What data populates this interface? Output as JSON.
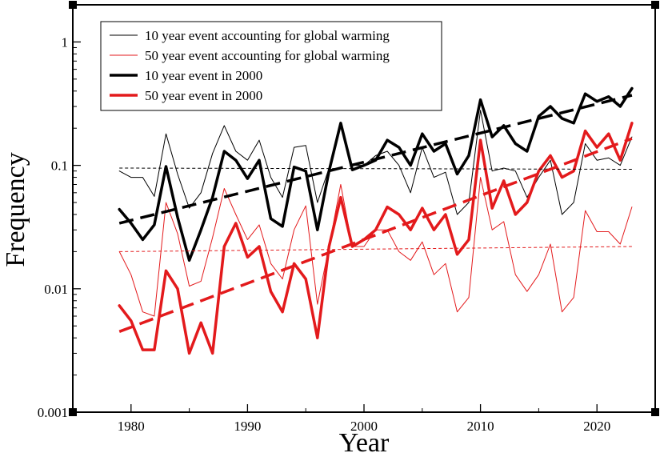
{
  "chart_data": {
    "type": "line",
    "title": "",
    "xlabel": "Year",
    "ylabel": "Frequency",
    "y_scale": "log",
    "xlim": [
      1975,
      2025
    ],
    "ylim": [
      0.001,
      2
    ],
    "x_ticks": [
      1980,
      1990,
      2000,
      2010,
      2020
    ],
    "y_ticks": [
      0.001,
      0.01,
      0.1,
      1
    ],
    "y_tick_labels": [
      "0.001",
      "0.01",
      "0.1",
      "1"
    ],
    "legend_position": "top-left",
    "x": [
      1979,
      1980,
      1981,
      1982,
      1983,
      1984,
      1985,
      1986,
      1987,
      1988,
      1989,
      1990,
      1991,
      1992,
      1993,
      1994,
      1995,
      1996,
      1997,
      1998,
      1999,
      2000,
      2001,
      2002,
      2003,
      2004,
      2005,
      2006,
      2007,
      2008,
      2009,
      2010,
      2011,
      2012,
      2013,
      2014,
      2015,
      2016,
      2017,
      2018,
      2019,
      2020,
      2021,
      2022,
      2023
    ],
    "series": [
      {
        "name": "10 year event accounting for global warming",
        "color": "#000000",
        "width": 1,
        "dash": "solid",
        "legend": true,
        "values": [
          0.09,
          0.08,
          0.08,
          0.056,
          0.18,
          0.085,
          0.045,
          0.06,
          0.125,
          0.21,
          0.13,
          0.11,
          0.16,
          0.08,
          0.055,
          0.14,
          0.145,
          0.05,
          0.095,
          0.21,
          0.1,
          0.1,
          0.12,
          0.13,
          0.1,
          0.06,
          0.14,
          0.08,
          0.088,
          0.04,
          0.05,
          0.28,
          0.09,
          0.095,
          0.09,
          0.055,
          0.08,
          0.11,
          0.04,
          0.05,
          0.15,
          0.11,
          0.115,
          0.1,
          0.17
        ]
      },
      {
        "name": "50 year event accounting for global warming",
        "color": "#e31a1c",
        "width": 1,
        "dash": "solid",
        "legend": true,
        "values": [
          0.02,
          0.013,
          0.0065,
          0.006,
          0.05,
          0.028,
          0.0105,
          0.0115,
          0.026,
          0.065,
          0.04,
          0.025,
          0.033,
          0.016,
          0.012,
          0.03,
          0.047,
          0.0075,
          0.022,
          0.07,
          0.022,
          0.022,
          0.03,
          0.03,
          0.02,
          0.017,
          0.024,
          0.013,
          0.016,
          0.0065,
          0.0085,
          0.08,
          0.03,
          0.035,
          0.013,
          0.0095,
          0.013,
          0.023,
          0.0065,
          0.0085,
          0.043,
          0.029,
          0.029,
          0.023,
          0.046
        ]
      },
      {
        "name": "10 year event in 2000",
        "color": "#000000",
        "width": 3.5,
        "dash": "solid",
        "legend": true,
        "values": [
          0.044,
          0.034,
          0.025,
          0.033,
          0.098,
          0.038,
          0.017,
          0.03,
          0.055,
          0.13,
          0.11,
          0.078,
          0.11,
          0.037,
          0.032,
          0.097,
          0.09,
          0.03,
          0.09,
          0.22,
          0.092,
          0.1,
          0.11,
          0.16,
          0.14,
          0.1,
          0.18,
          0.13,
          0.15,
          0.085,
          0.12,
          0.34,
          0.17,
          0.21,
          0.15,
          0.13,
          0.25,
          0.3,
          0.24,
          0.22,
          0.38,
          0.33,
          0.36,
          0.3,
          0.42
        ]
      },
      {
        "name": "50 year event in 2000",
        "color": "#e31a1c",
        "width": 3.5,
        "dash": "solid",
        "legend": true,
        "values": [
          0.0073,
          0.0055,
          0.0032,
          0.0032,
          0.014,
          0.01,
          0.003,
          0.0053,
          0.003,
          0.022,
          0.034,
          0.018,
          0.022,
          0.0095,
          0.0065,
          0.016,
          0.012,
          0.004,
          0.022,
          0.055,
          0.022,
          0.025,
          0.03,
          0.046,
          0.04,
          0.03,
          0.045,
          0.03,
          0.04,
          0.019,
          0.025,
          0.16,
          0.045,
          0.075,
          0.04,
          0.05,
          0.09,
          0.12,
          0.08,
          0.09,
          0.19,
          0.14,
          0.18,
          0.11,
          0.22
        ]
      },
      {
        "name": "10 year event accounting for global warming (mean)",
        "color": "#000000",
        "width": 1,
        "dash": "short",
        "legend": false,
        "x": [
          1979,
          2023
        ],
        "values": [
          0.095,
          0.093
        ]
      },
      {
        "name": "50 year event accounting for global warming (mean)",
        "color": "#e31a1c",
        "width": 1,
        "dash": "short",
        "legend": false,
        "x": [
          1979,
          2023
        ],
        "values": [
          0.02,
          0.022
        ]
      },
      {
        "name": "10 year event in 2000 (trend)",
        "color": "#000000",
        "width": 3.5,
        "dash": "long",
        "legend": false,
        "x": [
          1979,
          2023
        ],
        "values": [
          0.034,
          0.37
        ]
      },
      {
        "name": "50 year event in 2000 (trend)",
        "color": "#e31a1c",
        "width": 3.5,
        "dash": "long",
        "legend": false,
        "x": [
          1979,
          2023
        ],
        "values": [
          0.0045,
          0.165
        ]
      }
    ]
  }
}
